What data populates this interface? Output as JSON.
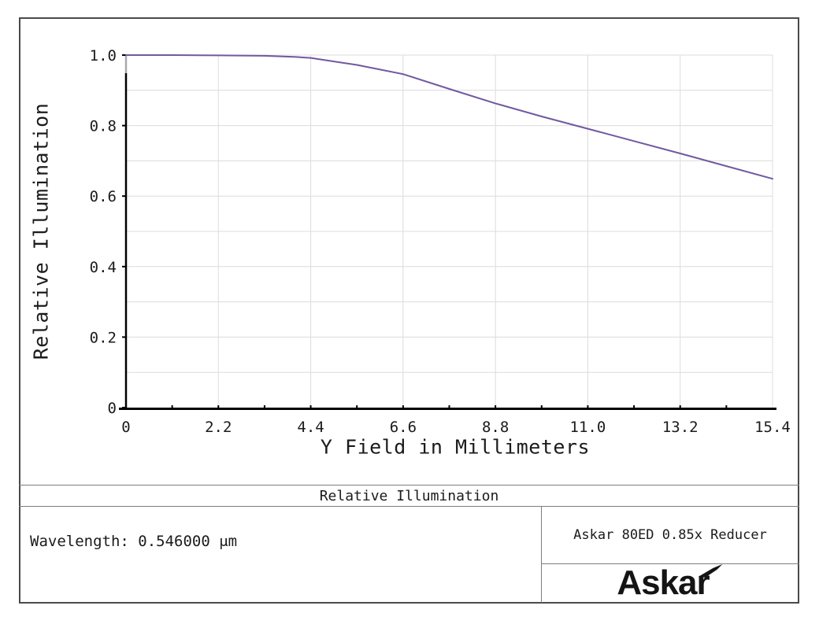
{
  "chart_data": {
    "type": "line",
    "title": "Relative Illumination",
    "xlabel": "Y Field in Millimeters",
    "ylabel": "Relative Illumination",
    "xlim": [
      0,
      15.4
    ],
    "ylim": [
      0,
      1.0
    ],
    "x_ticks": [
      0,
      2.2,
      4.4,
      6.6,
      8.8,
      11.0,
      13.2,
      15.4
    ],
    "x_tick_labels": [
      "0",
      "2.2",
      "4.4",
      "6.6",
      "8.8",
      "11.0",
      "13.2",
      "15.4"
    ],
    "x_minor_tick_step": 1.1,
    "y_ticks": [
      0,
      0.2,
      0.4,
      0.6,
      0.8,
      1.0
    ],
    "y_tick_labels": [
      "0",
      "0.2",
      "0.4",
      "0.6",
      "0.8",
      "1.0"
    ],
    "grid": {
      "on": true,
      "y_minor_step": 0.1,
      "color": "#dcdcdc"
    },
    "axis_color": "#000000",
    "series": [
      {
        "name": "Relative Illumination",
        "color": "#7258a0",
        "x": [
          0,
          1.1,
          2.2,
          3.3,
          4.0,
          4.4,
          5.0,
          5.5,
          6.6,
          7.7,
          8.8,
          9.9,
          11.0,
          12.1,
          13.2,
          14.3,
          15.4
        ],
        "y": [
          1.0,
          1.0,
          0.999,
          0.998,
          0.995,
          0.992,
          0.981,
          0.972,
          0.946,
          0.904,
          0.863,
          0.826,
          0.791,
          0.756,
          0.721,
          0.685,
          0.649
        ]
      }
    ]
  },
  "title_band": {
    "label": "Relative Illumination"
  },
  "info": {
    "wavelength": "Wavelength: 0.546000 μm",
    "system": "Askar 80ED 0.85x Reducer",
    "logo_text": "Askar"
  }
}
